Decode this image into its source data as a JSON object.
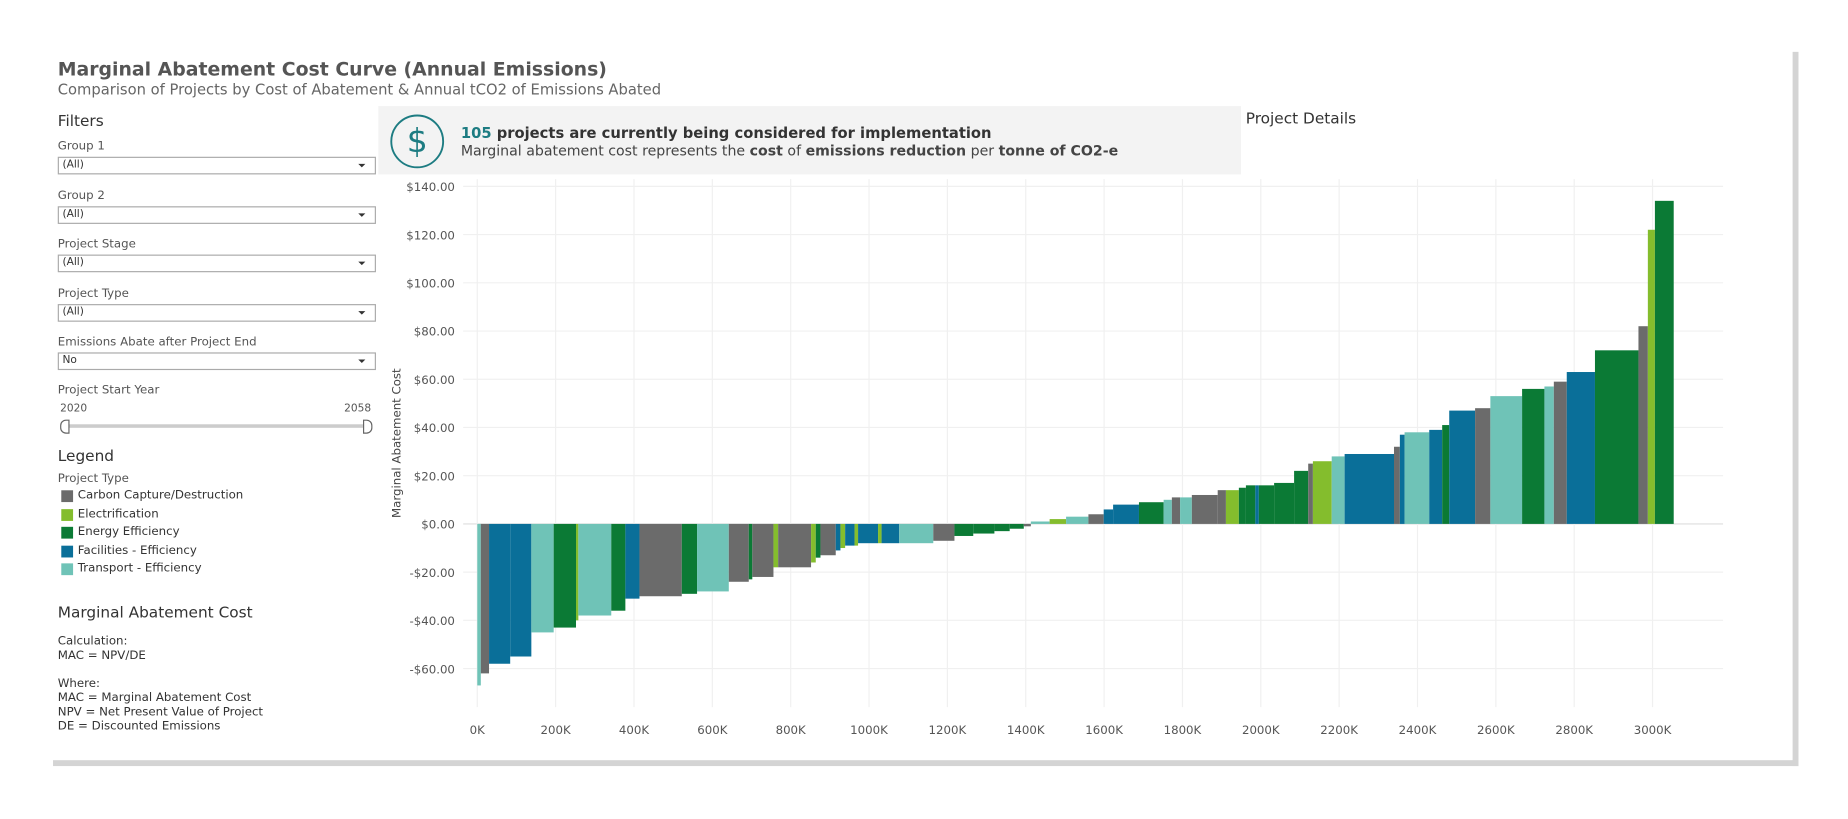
{
  "header": {
    "title": "Marginal Abatement Cost Curve (Annual Emissions)",
    "subtitle": "Comparison of Projects by Cost of Abatement & Annual tCO2 of Emissions Abated"
  },
  "filters": {
    "heading": "Filters",
    "items": [
      {
        "label": "Group 1",
        "value": "(All)"
      },
      {
        "label": "Group 2",
        "value": "(All)"
      },
      {
        "label": "Project Stage",
        "value": "(All)"
      },
      {
        "label": "Project Type",
        "value": "(All)"
      },
      {
        "label": "Emissions Abate after Project End",
        "value": "No"
      }
    ],
    "year_slider": {
      "label": "Project Start Year",
      "min": "2020",
      "max": "2058"
    }
  },
  "legend": {
    "heading": "Legend",
    "subheading": "Project Type",
    "items": [
      {
        "name": "Carbon Capture/Destruction",
        "color": "#6b6b6b"
      },
      {
        "name": "Electrification",
        "color": "#84bd2d"
      },
      {
        "name": "Energy Efficiency",
        "color": "#0b7a35"
      },
      {
        "name": "Facilities - Efficiency",
        "color": "#0a6f99"
      },
      {
        "name": "Transport - Efficiency",
        "color": "#6fc3b7"
      }
    ]
  },
  "mac_info": {
    "heading": "Marginal Abatement Cost",
    "lines": [
      "Calculation:",
      "MAC = NPV/DE",
      "Where:",
      "MAC = Marginal Abatement Cost",
      "NPV = Net Present Value of Project",
      "DE = Discounted Emissions"
    ]
  },
  "banner": {
    "count": "105",
    "line1": " projects are currently being considered for implementation",
    "line2": [
      "Marginal abatement cost represents the ",
      "cost",
      " of ",
      "emissions reduction",
      " per ",
      "tonne of CO2-e"
    ]
  },
  "details_heading": "Project Details",
  "chart_data": {
    "type": "mac",
    "y_label": "Marginal Abatement Cost",
    "values": [
      -67,
      -62,
      -58,
      -55,
      -45,
      -43,
      -40,
      -38,
      -36,
      -31,
      -30,
      -29,
      -28,
      -24,
      -23,
      -22,
      -18,
      -18,
      -16,
      -14,
      -13,
      -11,
      -10,
      -9,
      -9,
      -8,
      -8,
      -8,
      -8,
      -7,
      -5,
      -4,
      -3,
      -2,
      -1,
      1,
      2,
      3,
      4,
      6,
      8,
      9,
      10,
      11,
      11,
      12,
      14,
      14,
      15,
      16,
      16,
      16,
      17,
      22,
      25,
      26,
      28,
      29,
      32,
      37,
      38,
      39,
      41,
      47,
      48,
      53,
      56,
      57,
      59,
      63,
      72,
      82,
      122,
      134
    ],
    "widths": [
      9000,
      21000,
      54000,
      54000,
      57000,
      57000,
      6000,
      84000,
      36000,
      36000,
      108000,
      39000,
      81000,
      51000,
      9000,
      54000,
      12000,
      84000,
      12000,
      12000,
      39000,
      12000,
      12000,
      24000,
      9000,
      51000,
      9000,
      45000,
      87000,
      54000,
      48000,
      54000,
      39000,
      36000,
      18000,
      48000,
      42000,
      57000,
      39000,
      24000,
      66000,
      63000,
      21000,
      21000,
      30000,
      66000,
      21000,
      33000,
      18000,
      24000,
      9000,
      39000,
      51000,
      36000,
      12000,
      48000,
      33000,
      126000,
      15000,
      12000,
      63000,
      33000,
      18000,
      66000,
      39000,
      81000,
      57000,
      24000,
      33000,
      72000,
      111000,
      24000,
      18000,
      48000
    ],
    "types": [
      4,
      0,
      3,
      3,
      4,
      2,
      1,
      4,
      2,
      3,
      0,
      2,
      4,
      0,
      2,
      0,
      1,
      0,
      1,
      2,
      0,
      3,
      1,
      3,
      1,
      3,
      1,
      3,
      4,
      0,
      2,
      2,
      2,
      2,
      0,
      4,
      1,
      4,
      0,
      3,
      3,
      2,
      4,
      0,
      4,
      0,
      0,
      1,
      2,
      2,
      3,
      2,
      2,
      2,
      0,
      1,
      4,
      3,
      0,
      3,
      4,
      3,
      2,
      3,
      0,
      4,
      2,
      4,
      0,
      3,
      2,
      0,
      1,
      2
    ],
    "xlim": [
      -36000,
      3180000
    ],
    "xticks": [
      {
        "value": 0,
        "label": "0K"
      },
      {
        "value": 200000,
        "label": "200K"
      },
      {
        "value": 400000,
        "label": "400K"
      },
      {
        "value": 600000,
        "label": "600K"
      },
      {
        "value": 800000,
        "label": "800K"
      },
      {
        "value": 1000000,
        "label": "1000K"
      },
      {
        "value": 1200000,
        "label": "1200K"
      },
      {
        "value": 1400000,
        "label": "1400K"
      },
      {
        "value": 1600000,
        "label": "1600K"
      },
      {
        "value": 1800000,
        "label": "1800K"
      },
      {
        "value": 2000000,
        "label": "2000K"
      },
      {
        "value": 2200000,
        "label": "2200K"
      },
      {
        "value": 2400000,
        "label": "2400K"
      },
      {
        "value": 2600000,
        "label": "2600K"
      },
      {
        "value": 2800000,
        "label": "2800K"
      },
      {
        "value": 3000000,
        "label": "3000K"
      }
    ],
    "ylim": [
      -76,
      143
    ],
    "yticks": [
      {
        "value": -60,
        "label": "-$60.00"
      },
      {
        "value": -40,
        "label": "-$40.00"
      },
      {
        "value": -20,
        "label": "-$20.00"
      },
      {
        "value": 0,
        "label": "$0.00"
      },
      {
        "value": 20,
        "label": "$20.00"
      },
      {
        "value": 40,
        "label": "$40.00"
      },
      {
        "value": 60,
        "label": "$60.00"
      },
      {
        "value": 80,
        "label": "$80.00"
      },
      {
        "value": 100,
        "label": "$100.00"
      },
      {
        "value": 120,
        "label": "$120.00"
      },
      {
        "value": 140,
        "label": "$140.00"
      }
    ],
    "grid": true
  }
}
